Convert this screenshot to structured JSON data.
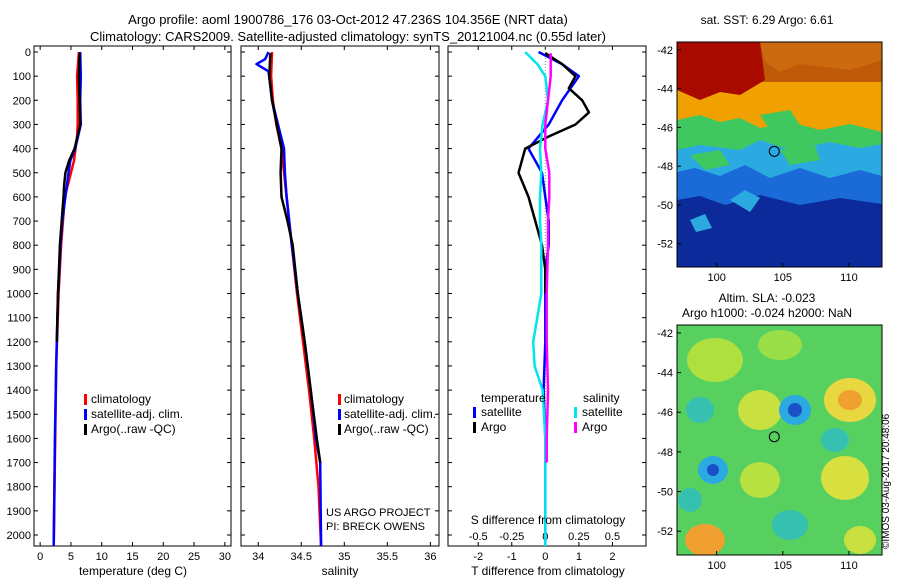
{
  "header": {
    "line1": "Argo profile: aoml 1900786_176 03-Oct-2012 47.236S 104.356E (NRT data)",
    "line2": "Climatology: CARS2009. Satellite-adjusted climatology: synTS_20121004.nc (0.55d later)"
  },
  "credits": {
    "project": "US ARGO PROJECT",
    "pi": "PI: BRECK OWENS",
    "stamp": "©IMOS 03-Aug-2017 20:48:06"
  },
  "colors": {
    "climatology": "#ff0000",
    "satellite": "#0000ff",
    "argo": "#000000",
    "sal_satellite": "#00e5ee",
    "sal_argo": "#ff00ff"
  },
  "chart_data": [
    {
      "type": "line",
      "xlabel": "temperature (deg C)",
      "ylabel": "",
      "xlim": [
        -1,
        31
      ],
      "ylim": [
        2100,
        0
      ],
      "x_ticks": [
        "0",
        "5",
        "10",
        "15",
        "20",
        "25",
        "30"
      ],
      "y_ticks": [
        "0",
        "100",
        "200",
        "300",
        "400",
        "500",
        "600",
        "700",
        "800",
        "900",
        "1000",
        "1100",
        "1200",
        "1300",
        "1400",
        "1500",
        "1600",
        "1700",
        "1800",
        "1900",
        "2000"
      ],
      "legend": [
        "climatology",
        "satellite-adj. clim.",
        "Argo(..raw -QC)"
      ],
      "legend_position": "bottom-right",
      "series": [
        {
          "name": "climatology",
          "color": "#ff0000",
          "y": [
            0,
            100,
            200,
            300,
            350,
            450,
            600,
            800,
            1000,
            1300,
            2050
          ],
          "x": [
            6.3,
            6.0,
            6.1,
            6.1,
            6.0,
            5.5,
            4.0,
            3.4,
            3.0,
            2.6,
            2.2
          ]
        },
        {
          "name": "satellite-adj. clim.",
          "color": "#0000ff",
          "y": [
            0,
            100,
            200,
            300,
            400,
            450,
            500,
            600,
            700,
            800,
            1000,
            1300,
            1600,
            2050
          ],
          "x": [
            6.5,
            6.6,
            6.5,
            6.6,
            5.7,
            4.9,
            4.6,
            4.1,
            3.6,
            3.3,
            2.9,
            2.6,
            2.4,
            2.2
          ]
        },
        {
          "name": "Argo(..raw -QC)",
          "color": "#000000",
          "y": [
            5,
            100,
            200,
            300,
            400,
            450,
            500,
            550,
            600,
            700,
            800,
            1000,
            1200
          ],
          "x": [
            6.4,
            6.3,
            6.4,
            6.5,
            5.6,
            4.7,
            4.1,
            3.9,
            3.8,
            3.5,
            3.2,
            2.9,
            2.7
          ]
        }
      ]
    },
    {
      "type": "line",
      "xlabel": "salinity",
      "ylabel": "",
      "xlim": [
        33.8,
        36.1
      ],
      "ylim": [
        2100,
        0
      ],
      "x_ticks": [
        "34",
        "34.5",
        "35",
        "35.5",
        "36"
      ],
      "legend": [
        "climatology",
        "satellite-adj. clim.",
        "Argo(..raw -QC)"
      ],
      "legend_position": "bottom-right",
      "series": [
        {
          "name": "climatology",
          "color": "#ff0000",
          "y": [
            0,
            100,
            200,
            300,
            400,
            600,
            800,
            900,
            1000,
            1200,
            1400,
            1600,
            1800,
            2050
          ],
          "x": [
            34.16,
            34.15,
            34.17,
            34.21,
            34.27,
            34.33,
            34.39,
            34.42,
            34.45,
            34.52,
            34.59,
            34.65,
            34.7,
            34.73
          ]
        },
        {
          "name": "satellite-adj. clim.",
          "color": "#0000ff",
          "y": [
            0,
            30,
            50,
            80,
            200,
            400,
            500,
            600,
            800,
            1000,
            1200,
            1400,
            1600,
            1700,
            2050
          ],
          "x": [
            34.12,
            34.08,
            33.98,
            34.12,
            34.16,
            34.3,
            34.31,
            34.33,
            34.39,
            34.46,
            34.54,
            34.61,
            34.67,
            34.72,
            34.73
          ]
        },
        {
          "name": "Argo(..raw -QC)",
          "color": "#000000",
          "y": [
            5,
            100,
            200,
            400,
            500,
            600,
            700,
            800,
            1000,
            1200,
            1400,
            1600,
            1700
          ],
          "x": [
            34.14,
            34.13,
            34.16,
            34.27,
            34.26,
            34.27,
            34.34,
            34.4,
            34.46,
            34.54,
            34.61,
            34.68,
            34.72
          ]
        }
      ]
    },
    {
      "type": "line",
      "xlabel": "T difference from climatology",
      "xlabel_top": "S difference from climatology",
      "ylabel": "",
      "xlim": [
        -2.9,
        3.0
      ],
      "ylim": [
        2100,
        0
      ],
      "x_ticks": [
        "-2",
        "-1",
        "0",
        "1",
        "2"
      ],
      "x_ticks_top": [
        "-0.5",
        "-0.25",
        "0",
        "0.25",
        "0.5"
      ],
      "legend_temperature_title": "temperature",
      "legend_temperature": [
        "satellite",
        "Argo"
      ],
      "legend_salinity_title": "salinity",
      "legend_salinity": [
        "satellite",
        "Argo"
      ],
      "legend_position": "bottom",
      "series": [
        {
          "name": "temperature satellite",
          "color": "#0000ff",
          "y": [
            0,
            50,
            100,
            200,
            300,
            400,
            500,
            600,
            700,
            800,
            900,
            1000,
            1200,
            1400,
            1600,
            1700,
            2050
          ],
          "x": [
            -0.2,
            0.5,
            1.0,
            0.5,
            0.1,
            -0.5,
            -0.1,
            0.0,
            0.1,
            0.1,
            0.0,
            0.0,
            0.0,
            -0.05,
            0.0,
            0.0,
            0.0
          ]
        },
        {
          "name": "temperature Argo",
          "color": "#000000",
          "y": [
            5,
            50,
            100,
            150,
            200,
            250,
            300,
            350,
            400,
            500,
            600,
            700,
            800,
            900,
            1000
          ],
          "x": [
            0.0,
            0.5,
            0.9,
            0.7,
            1.1,
            1.3,
            0.9,
            0.1,
            -0.6,
            -0.8,
            -0.5,
            -0.3,
            -0.1,
            0.0,
            0.0
          ]
        },
        {
          "name": "salinity satellite",
          "color": "#00e5ee",
          "y": [
            0,
            50,
            100,
            200,
            300,
            400,
            500,
            600,
            700,
            800,
            900,
            1000,
            1100,
            1200,
            1300,
            1400,
            1600,
            1800,
            2050
          ],
          "x": [
            -0.15,
            -0.06,
            0.0,
            0.02,
            -0.02,
            -0.04,
            -0.03,
            -0.04,
            -0.04,
            -0.03,
            -0.03,
            -0.03,
            -0.06,
            -0.09,
            -0.08,
            -0.02,
            0.0,
            0.0,
            0.0
          ]
        },
        {
          "name": "salinity Argo",
          "color": "#ff00ff",
          "y": [
            5,
            100,
            200,
            300,
            400,
            500,
            600,
            700,
            800,
            1000,
            1200,
            1400,
            1600,
            1700
          ],
          "x": [
            0.04,
            0.04,
            0.02,
            0.0,
            0.0,
            0.03,
            0.03,
            0.02,
            0.02,
            0.01,
            0.01,
            0.02,
            0.01,
            0.01
          ]
        }
      ]
    },
    {
      "type": "heatmap",
      "title": "sat. SST: 6.29 Argo: 6.61",
      "x_ticks": [
        "100",
        "105",
        "110"
      ],
      "y_ticks": [
        "-42",
        "-44",
        "-46",
        "-48",
        "-50",
        "-52"
      ],
      "xlim": [
        97,
        112.5
      ],
      "ylim": [
        -53.2,
        -41.6
      ],
      "marker": {
        "lon": 104.356,
        "lat": -47.236
      }
    },
    {
      "type": "heatmap",
      "title_line1": "Altim. SLA: -0.023",
      "title_line2": "Argo h1000: -0.024 h2000: NaN",
      "x_ticks": [
        "100",
        "105",
        "110"
      ],
      "y_ticks": [
        "-42",
        "-44",
        "-46",
        "-48",
        "-50",
        "-52"
      ],
      "xlim": [
        97,
        112.5
      ],
      "ylim": [
        -53.2,
        -41.6
      ],
      "marker": {
        "lon": 104.356,
        "lat": -47.236
      }
    }
  ]
}
